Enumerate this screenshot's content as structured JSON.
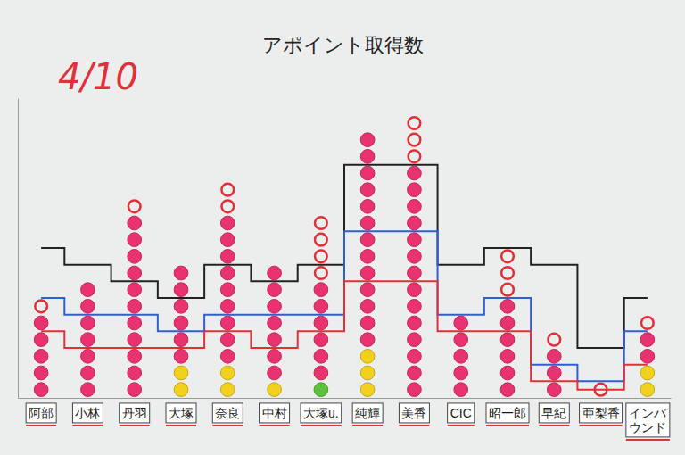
{
  "chart_data": {
    "type": "bar",
    "title": "アポイント取得数",
    "annotations": [
      "4/10"
    ],
    "stacked": true,
    "tick_labels": "x",
    "grid": false,
    "categories": [
      "阿部",
      "小林",
      "丹羽",
      "大塚",
      "奈良",
      "中村",
      "大塚u.",
      "純輝",
      "美香",
      "CIC",
      "昭一郎",
      "早紀",
      "亜梨香",
      "インバウンド"
    ],
    "ylim": [
      0,
      18
    ],
    "series": [
      {
        "type": "bar",
        "color": "#f2d01e",
        "marker": "circle",
        "values": [
          0,
          0,
          0,
          2,
          2,
          1,
          0,
          3,
          0,
          0,
          0,
          0,
          0,
          2
        ]
      },
      {
        "type": "bar",
        "color": "#5cc23a",
        "marker": "circle",
        "values": [
          0,
          0,
          0,
          0,
          0,
          0,
          1,
          0,
          0,
          0,
          0,
          0,
          0,
          0
        ]
      },
      {
        "type": "bar",
        "color": "#e8336f",
        "marker": "circle",
        "values": [
          5,
          7,
          11,
          6,
          9,
          7,
          6,
          13,
          14,
          5,
          6,
          3,
          0,
          2
        ]
      },
      {
        "type": "bar",
        "color": "#e0303a",
        "marker": "ring",
        "values": [
          1,
          0,
          1,
          0,
          2,
          0,
          4,
          0,
          3,
          0,
          3,
          1,
          1,
          1
        ]
      },
      {
        "type": "line",
        "color": "#222222",
        "line_style": "step",
        "values": [
          9,
          8,
          7,
          6,
          8,
          7,
          8,
          14,
          14,
          8,
          9,
          8,
          3,
          6
        ]
      },
      {
        "type": "line",
        "color": "#2f5fd0",
        "line_style": "step",
        "values": [
          6,
          5,
          5,
          4,
          5,
          5,
          5,
          10,
          10,
          5,
          6,
          2,
          1,
          4
        ]
      },
      {
        "type": "line",
        "color": "#e0303a",
        "line_style": "step",
        "values": [
          4,
          3,
          3,
          3,
          4,
          3,
          4,
          7,
          7,
          4,
          4,
          1,
          0.5,
          2
        ]
      }
    ]
  }
}
